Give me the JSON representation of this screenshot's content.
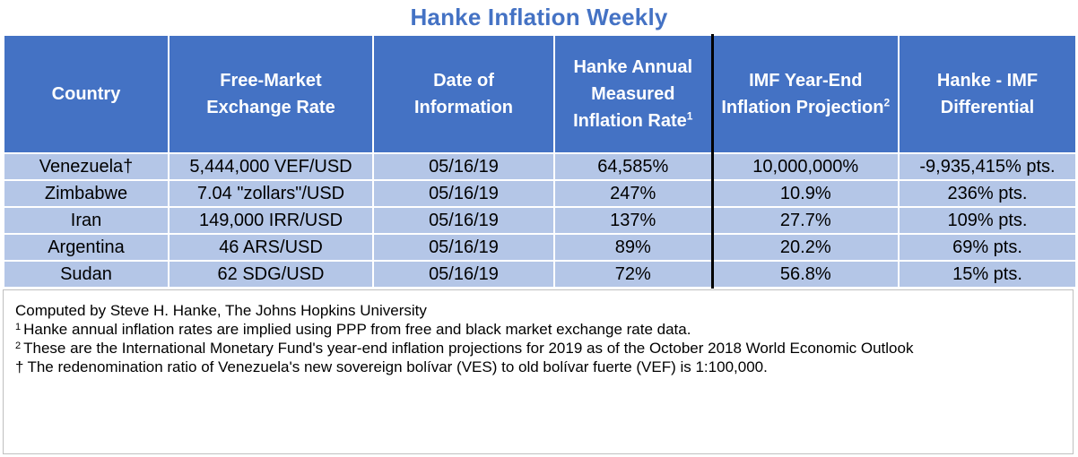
{
  "title": "Hanke Inflation Weekly",
  "header": {
    "country": "Country",
    "exchange_rate": [
      "Free-Market",
      "Exchange Rate"
    ],
    "date": [
      "Date of",
      "Information"
    ],
    "hanke_rate": [
      "Hanke Annual",
      "Measured",
      "Inflation Rate"
    ],
    "hanke_rate_sup": "1",
    "imf": [
      "IMF Year-End",
      "Inflation Projection"
    ],
    "imf_sup": "2",
    "differential": [
      "Hanke - IMF",
      "Differential"
    ]
  },
  "rows": [
    {
      "country": "Venezuela†",
      "exchange_rate": "5,444,000 VEF/USD",
      "date": "05/16/19",
      "hanke_rate": "64,585%",
      "imf": "10,000,000%",
      "differential": "-9,935,415% pts."
    },
    {
      "country": "Zimbabwe",
      "exchange_rate": "7.04 \"zollars\"/USD",
      "date": "05/16/19",
      "hanke_rate": "247%",
      "imf": "10.9%",
      "differential": "236% pts."
    },
    {
      "country": "Iran",
      "exchange_rate": "149,000 IRR/USD",
      "date": "05/16/19",
      "hanke_rate": "137%",
      "imf": "27.7%",
      "differential": "109% pts."
    },
    {
      "country": "Argentina",
      "exchange_rate": "46 ARS/USD",
      "date": "05/16/19",
      "hanke_rate": "89%",
      "imf": "20.2%",
      "differential": "69% pts."
    },
    {
      "country": "Sudan",
      "exchange_rate": "62 SDG/USD",
      "date": "05/16/19",
      "hanke_rate": "72%",
      "imf": "56.8%",
      "differential": "15% pts."
    }
  ],
  "notes": {
    "computed_by": "Computed by Steve H. Hanke, The Johns Hopkins University",
    "note1_mark": "1",
    "note1": "Hanke annual inflation rates are implied using PPP from free and black market exchange rate data.",
    "note2_mark": "2",
    "note2": "These are the International Monetary Fund's year-end inflation projections for 2019 as of the October 2018 World Economic Outlook",
    "note3_mark": "†",
    "note3": "The redenomination ratio of Venezuela's new sovereign bolívar (VES) to old bolívar fuerte (VEF) is 1:100,000."
  },
  "colors": {
    "title": "#4472c4",
    "header_bg": "#4472c4",
    "row_bg": "#b4c6e7"
  }
}
